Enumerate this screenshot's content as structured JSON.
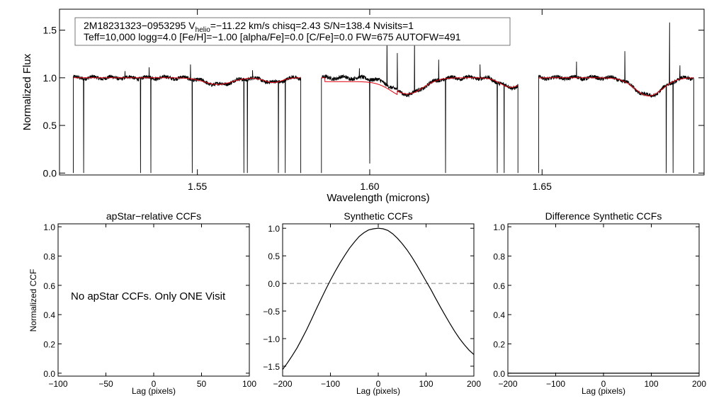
{
  "chart_data": [
    {
      "id": "spectrum",
      "type": "line",
      "xlabel": "Wavelength (microns)",
      "ylabel": "Normalized Flux",
      "xlim": [
        1.51,
        1.697
      ],
      "ylim": [
        -0.02,
        1.72
      ],
      "xticks": [
        {
          "value": 1.55,
          "label": "1.55"
        },
        {
          "value": 1.6,
          "label": "1.60"
        },
        {
          "value": 1.65,
          "label": "1.65"
        }
      ],
      "yticks": [
        {
          "value": 0.0,
          "label": "0.0"
        },
        {
          "value": 0.5,
          "label": "0.5"
        },
        {
          "value": 1.0,
          "label": "1.0"
        },
        {
          "value": 1.5,
          "label": "1.5"
        }
      ],
      "chips": [
        [
          1.514,
          1.58
        ],
        [
          1.586,
          1.643
        ],
        [
          1.649,
          1.694
        ]
      ],
      "absorption_lines": [
        {
          "center": 1.556,
          "depth": 0.07,
          "width": 0.004
        },
        {
          "center": 1.572,
          "depth": 0.05,
          "width": 0.0025
        },
        {
          "center": 1.611,
          "depth": 0.17,
          "width": 0.0045
        },
        {
          "center": 1.641,
          "depth": 0.1,
          "width": 0.003
        },
        {
          "center": 1.681,
          "depth": 0.19,
          "width": 0.004
        }
      ],
      "model_offsets": [
        {
          "x1": 1.587,
          "x2": 1.608,
          "offset": -0.04
        }
      ],
      "emission_spikes": [
        {
          "x": 1.529,
          "y": 1.07
        },
        {
          "x": 1.536,
          "y": 1.11
        },
        {
          "x": 1.548,
          "y": 1.14
        },
        {
          "x": 1.566,
          "y": 1.08
        },
        {
          "x": 1.597,
          "y": 1.1
        },
        {
          "x": 1.605,
          "y": 1.45
        },
        {
          "x": 1.608,
          "y": 1.26
        },
        {
          "x": 1.613,
          "y": 1.43
        },
        {
          "x": 1.62,
          "y": 1.19
        },
        {
          "x": 1.632,
          "y": 1.14
        },
        {
          "x": 1.66,
          "y": 1.17
        },
        {
          "x": 1.674,
          "y": 1.28
        },
        {
          "x": 1.687,
          "y": 1.58
        },
        {
          "x": 1.69,
          "y": 1.13
        }
      ],
      "dropouts": [
        {
          "x": 1.517,
          "y": 0.0
        },
        {
          "x": 1.5335,
          "y": 0.0
        },
        {
          "x": 1.5365,
          "y": 0.0
        },
        {
          "x": 1.5485,
          "y": 0.0
        },
        {
          "x": 1.5635,
          "y": 0.0
        },
        {
          "x": 1.5645,
          "y": 0.0
        },
        {
          "x": 1.5735,
          "y": 0.0
        },
        {
          "x": 1.5755,
          "y": 0.0
        },
        {
          "x": 1.6,
          "y": 0.1
        },
        {
          "x": 1.622,
          "y": 0.0
        },
        {
          "x": 1.637,
          "y": 0.0
        },
        {
          "x": 1.639,
          "y": 0.0
        },
        {
          "x": 1.647,
          "y": 0.0
        },
        {
          "x": 1.686,
          "y": 0.0
        },
        {
          "x": 1.688,
          "y": 0.0
        }
      ],
      "info": {
        "line1_part1": "2M18231323−0953295  V",
        "line1_sub": "helio",
        "line1_part2": "=−11.22 km/s  chisq=2.43  S/N=138.4  Nvisits=1",
        "line2": "Teff=10,000 logg=4.0 [Fe/H]=−1.00 [alpha/Fe]=0.0 [C/Fe]=0.0 FW=675 AUTOFW=491"
      }
    },
    {
      "id": "apstar-ccf",
      "type": "line",
      "title": "apStar−relative CCFs",
      "xlabel": "Lag (pixels)",
      "ylabel": "Normalized CCF",
      "xlim": [
        -100,
        100
      ],
      "ylim": [
        -0.02,
        1.02
      ],
      "xticks": [
        {
          "value": -100,
          "label": "−100"
        },
        {
          "value": -50,
          "label": "−50"
        },
        {
          "value": 0,
          "label": "0"
        },
        {
          "value": 50,
          "label": "50"
        },
        {
          "value": 100,
          "label": "100"
        }
      ],
      "yticks": [
        {
          "value": 0.0,
          "label": "0.0"
        },
        {
          "value": 0.2,
          "label": "0.2"
        },
        {
          "value": 0.4,
          "label": "0.4"
        },
        {
          "value": 0.6,
          "label": "0.6"
        },
        {
          "value": 0.8,
          "label": "0.8"
        },
        {
          "value": 1.0,
          "label": "1.0"
        }
      ],
      "annotation": "No apStar CCFs.  Only ONE Visit"
    },
    {
      "id": "synthetic-ccf",
      "type": "line",
      "title": "Synthetic CCFs",
      "xlabel": "Lag (pixels)",
      "xlim": [
        -200,
        200
      ],
      "ylim": [
        -1.68,
        1.08
      ],
      "xticks": [
        {
          "value": -200,
          "label": "−200"
        },
        {
          "value": -100,
          "label": "−100"
        },
        {
          "value": 0,
          "label": "0"
        },
        {
          "value": 100,
          "label": "100"
        },
        {
          "value": 200,
          "label": "200"
        }
      ],
      "yticks": [
        {
          "value": -1.5,
          "label": "−1.5"
        },
        {
          "value": -1.0,
          "label": "−1.0"
        },
        {
          "value": -0.5,
          "label": "−0.5"
        },
        {
          "value": 0.0,
          "label": "0.0"
        },
        {
          "value": 0.5,
          "label": "0.5"
        },
        {
          "value": 1.0,
          "label": "1.0"
        }
      ],
      "zero_line": 0.0,
      "series": [
        {
          "name": "synthetic",
          "x": [
            -200,
            -190,
            -180,
            -170,
            -160,
            -150,
            -140,
            -130,
            -120,
            -110,
            -100,
            -90,
            -80,
            -70,
            -60,
            -50,
            -40,
            -30,
            -20,
            -10,
            0,
            10,
            20,
            30,
            40,
            50,
            60,
            70,
            80,
            90,
            100,
            110,
            120,
            130,
            140,
            150,
            160,
            170,
            180,
            190,
            200
          ],
          "y": [
            -1.56,
            -1.44,
            -1.31,
            -1.17,
            -1.01,
            -0.84,
            -0.66,
            -0.47,
            -0.29,
            -0.11,
            0.06,
            0.22,
            0.37,
            0.51,
            0.64,
            0.75,
            0.85,
            0.92,
            0.97,
            0.99,
            1.0,
            0.99,
            0.96,
            0.9,
            0.82,
            0.72,
            0.61,
            0.48,
            0.34,
            0.19,
            0.04,
            -0.11,
            -0.27,
            -0.43,
            -0.58,
            -0.73,
            -0.87,
            -1.0,
            -1.11,
            -1.21,
            -1.29
          ]
        }
      ]
    },
    {
      "id": "difference-ccf",
      "type": "line",
      "title": "Difference Synthetic CCFs",
      "xlabel": "Lag (pixels)",
      "xlim": [
        -200,
        200
      ],
      "ylim": [
        -0.02,
        1.02
      ],
      "xticks": [
        {
          "value": -200,
          "label": "−200"
        },
        {
          "value": -100,
          "label": "−100"
        },
        {
          "value": 0,
          "label": "0"
        },
        {
          "value": 100,
          "label": "100"
        },
        {
          "value": 200,
          "label": "200"
        }
      ],
      "yticks": [
        {
          "value": 0.0,
          "label": "0.0"
        },
        {
          "value": 0.2,
          "label": "0.2"
        },
        {
          "value": 0.4,
          "label": "0.4"
        },
        {
          "value": 0.6,
          "label": "0.6"
        },
        {
          "value": 0.8,
          "label": "0.8"
        },
        {
          "value": 1.0,
          "label": "1.0"
        }
      ],
      "series": [
        {
          "name": "difference",
          "x": [
            -200,
            200
          ],
          "y": [
            0.0,
            0.0
          ]
        }
      ]
    }
  ],
  "colors": {
    "observed": "#000000",
    "model": "#e0000e",
    "zero_line": "#888888",
    "axis": "#000000"
  }
}
